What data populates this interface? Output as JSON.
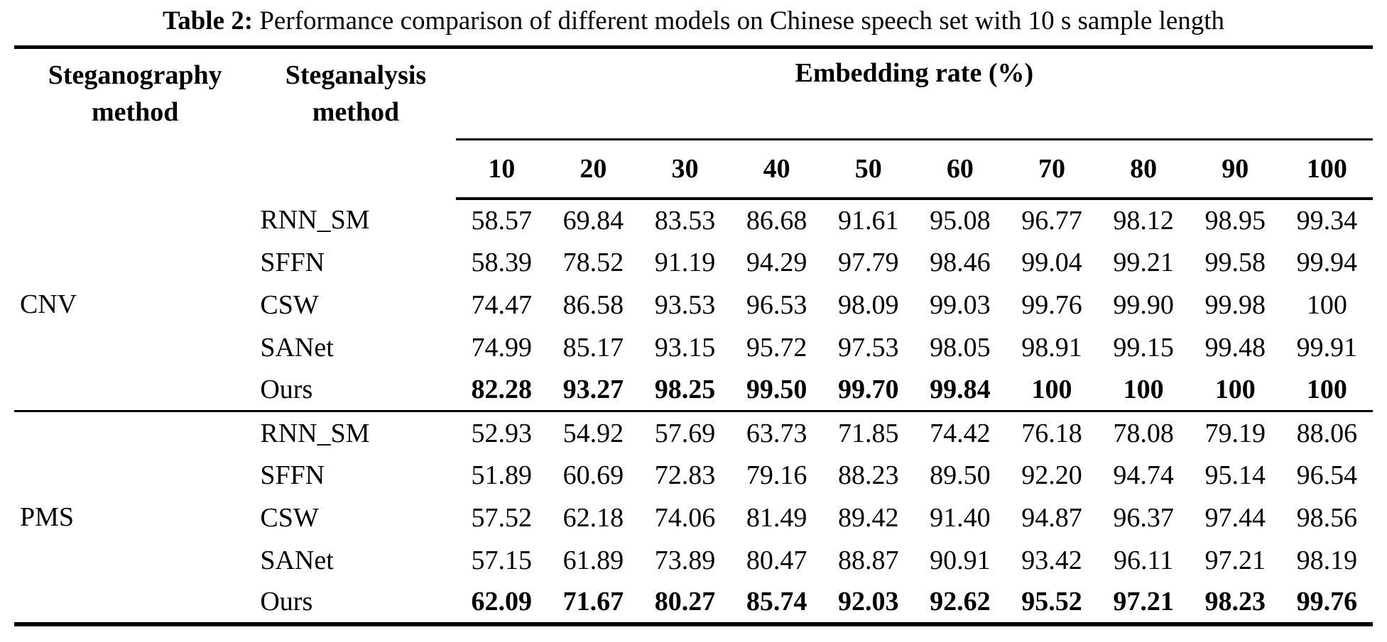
{
  "caption": {
    "label": "Table 2:",
    "text": " Performance comparison of different models on Chinese speech set with 10 s sample length"
  },
  "header": {
    "col1_line1": "Steganography",
    "col1_line2": "method",
    "col2_line1": "Steganalysis",
    "col2_line2": "method",
    "embedding_rate": "Embedding rate (%)",
    "rates": [
      "10",
      "20",
      "30",
      "40",
      "50",
      "60",
      "70",
      "80",
      "90",
      "100"
    ]
  },
  "groups": [
    {
      "name": "CNV",
      "rows": [
        {
          "method": "RNN_SM",
          "bold": false,
          "values": [
            "58.57",
            "69.84",
            "83.53",
            "86.68",
            "91.61",
            "95.08",
            "96.77",
            "98.12",
            "98.95",
            "99.34"
          ]
        },
        {
          "method": "SFFN",
          "bold": false,
          "values": [
            "58.39",
            "78.52",
            "91.19",
            "94.29",
            "97.79",
            "98.46",
            "99.04",
            "99.21",
            "99.58",
            "99.94"
          ]
        },
        {
          "method": "CSW",
          "bold": false,
          "values": [
            "74.47",
            "86.58",
            "93.53",
            "96.53",
            "98.09",
            "99.03",
            "99.76",
            "99.90",
            "99.98",
            "100"
          ]
        },
        {
          "method": "SANet",
          "bold": false,
          "values": [
            "74.99",
            "85.17",
            "93.15",
            "95.72",
            "97.53",
            "98.05",
            "98.91",
            "99.15",
            "99.48",
            "99.91"
          ]
        },
        {
          "method": "Ours",
          "bold": true,
          "values": [
            "82.28",
            "93.27",
            "98.25",
            "99.50",
            "99.70",
            "99.84",
            "100",
            "100",
            "100",
            "100"
          ]
        }
      ]
    },
    {
      "name": "PMS",
      "rows": [
        {
          "method": "RNN_SM",
          "bold": false,
          "values": [
            "52.93",
            "54.92",
            "57.69",
            "63.73",
            "71.85",
            "74.42",
            "76.18",
            "78.08",
            "79.19",
            "88.06"
          ]
        },
        {
          "method": "SFFN",
          "bold": false,
          "values": [
            "51.89",
            "60.69",
            "72.83",
            "79.16",
            "88.23",
            "89.50",
            "92.20",
            "94.74",
            "95.14",
            "96.54"
          ]
        },
        {
          "method": "CSW",
          "bold": false,
          "values": [
            "57.52",
            "62.18",
            "74.06",
            "81.49",
            "89.42",
            "91.40",
            "94.87",
            "96.37",
            "97.44",
            "98.56"
          ]
        },
        {
          "method": "SANet",
          "bold": false,
          "values": [
            "57.15",
            "61.89",
            "73.89",
            "80.47",
            "88.87",
            "90.91",
            "93.42",
            "96.11",
            "97.21",
            "98.19"
          ]
        },
        {
          "method": "Ours",
          "bold": true,
          "values": [
            "62.09",
            "71.67",
            "80.27",
            "85.74",
            "92.03",
            "92.62",
            "95.52",
            "97.21",
            "98.23",
            "99.76"
          ]
        }
      ]
    }
  ]
}
